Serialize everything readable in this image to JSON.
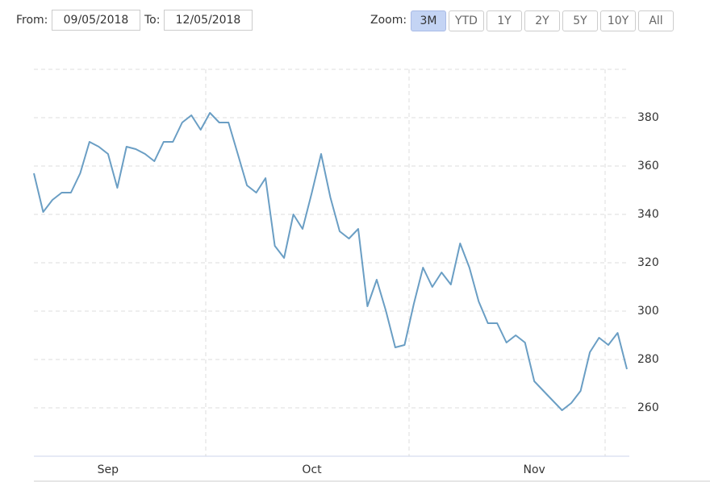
{
  "range_selector": {
    "from_label": "From:",
    "from": "09/05/2018",
    "to_label": "To:",
    "to": "12/05/2018",
    "zoom_label": "Zoom:",
    "buttons": [
      "3M",
      "YTD",
      "1Y",
      "2Y",
      "5Y",
      "10Y",
      "All"
    ],
    "selected": 0
  },
  "chart_data": {
    "type": "line",
    "categories": [
      null,
      null,
      null,
      null,
      null,
      null,
      null,
      null,
      "Sep",
      null,
      null,
      null,
      null,
      null,
      null,
      null,
      null,
      null,
      null,
      null,
      null,
      null,
      null,
      null,
      null,
      null,
      null,
      null,
      null,
      null,
      "Oct",
      null,
      null,
      null,
      null,
      null,
      null,
      null,
      null,
      null,
      null,
      null,
      null,
      null,
      null,
      null,
      null,
      null,
      null,
      null,
      null,
      null,
      null,
      null,
      "Nov",
      null,
      null,
      null,
      null,
      null,
      null,
      null,
      null,
      null,
      null
    ],
    "series": [
      {
        "color": "#6a9ec4",
        "values": [
          357,
          341,
          346,
          349,
          349,
          357,
          370,
          368,
          365,
          351,
          368,
          367,
          365,
          362,
          370,
          370,
          378,
          381,
          375,
          382,
          378,
          378,
          365,
          352,
          349,
          355,
          327,
          322,
          340,
          334,
          349,
          365,
          347,
          333,
          330,
          334,
          302,
          313,
          300,
          285,
          286,
          303,
          318,
          310,
          316,
          311,
          328,
          318,
          304,
          295,
          295,
          287,
          290,
          287,
          271,
          267,
          263,
          259,
          262,
          267,
          283,
          289,
          286,
          291,
          276
        ]
      }
    ],
    "ylim": [
      240,
      400
    ],
    "yticks": [
      260,
      280,
      300,
      320,
      340,
      360,
      380
    ],
    "grid": true,
    "y_axis_side": "right"
  }
}
